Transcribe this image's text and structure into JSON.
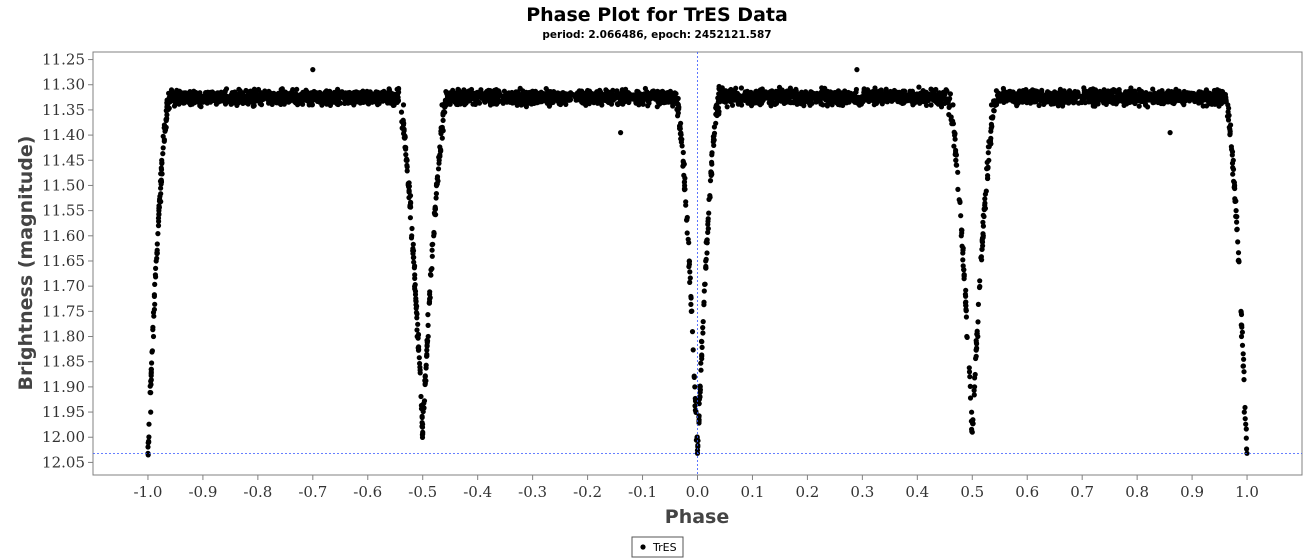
{
  "chart_data": {
    "type": "scatter",
    "title": "Phase Plot for TrES Data",
    "subtitle": "period: 2.066486, epoch: 2452121.587",
    "xlabel": "Phase",
    "ylabel": "Brightness (magnitude)",
    "xlim": [
      -1.1,
      1.1
    ],
    "ylim": [
      11.235,
      12.075
    ],
    "y_inverted": true,
    "x_ticks": [
      "-1.0",
      "-0.9",
      "-0.8",
      "-0.7",
      "-0.6",
      "-0.5",
      "-0.4",
      "-0.3",
      "-0.2",
      "-0.1",
      "0.0",
      "0.1",
      "0.2",
      "0.3",
      "0.4",
      "0.5",
      "0.6",
      "0.7",
      "0.8",
      "0.9",
      "1.0"
    ],
    "y_ticks": [
      "11.25",
      "11.30",
      "11.35",
      "11.40",
      "11.45",
      "11.50",
      "11.55",
      "11.60",
      "11.65",
      "11.70",
      "11.75",
      "11.80",
      "11.85",
      "11.90",
      "11.95",
      "12.00",
      "12.05"
    ],
    "crosshair": {
      "x": 0.0,
      "y": 12.032
    },
    "grid": false,
    "legend_position": "bottom-center",
    "series": [
      {
        "name": "TrES",
        "color": "#000000",
        "marker": "circle",
        "baseline": 11.325,
        "baseline_scatter": 0.012,
        "primary_eclipse_depth": 12.032,
        "primary_eclipse_halfwidth": 0.04,
        "secondary_eclipse_depth": 11.99,
        "secondary_eclipse_halfwidth": 0.045,
        "points": [
          {
            "x": -1.0,
            "y": 12.032
          },
          {
            "x": -0.995,
            "y": 11.95
          },
          {
            "x": -0.99,
            "y": 11.8
          },
          {
            "x": -0.985,
            "y": 11.65
          },
          {
            "x": -0.98,
            "y": 11.55
          },
          {
            "x": -0.975,
            "y": 11.45
          },
          {
            "x": -0.97,
            "y": 11.38
          },
          {
            "x": -0.965,
            "y": 11.34
          },
          {
            "x": -0.535,
            "y": 11.34
          },
          {
            "x": -0.53,
            "y": 11.45
          },
          {
            "x": -0.52,
            "y": 11.6
          },
          {
            "x": -0.51,
            "y": 11.8
          },
          {
            "x": -0.5,
            "y": 11.99
          },
          {
            "x": -0.49,
            "y": 11.8
          },
          {
            "x": -0.48,
            "y": 11.6
          },
          {
            "x": -0.47,
            "y": 11.45
          },
          {
            "x": -0.465,
            "y": 11.34
          },
          {
            "x": -0.7,
            "y": 11.27
          },
          {
            "x": -0.14,
            "y": 11.395
          },
          {
            "x": -0.035,
            "y": 11.34
          },
          {
            "x": -0.025,
            "y": 11.48
          },
          {
            "x": -0.015,
            "y": 11.65
          },
          {
            "x": -0.005,
            "y": 11.9
          },
          {
            "x": 0.0,
            "y": 12.032
          },
          {
            "x": 0.005,
            "y": 11.9
          },
          {
            "x": 0.015,
            "y": 11.65
          },
          {
            "x": 0.025,
            "y": 11.48
          },
          {
            "x": 0.035,
            "y": 11.34
          },
          {
            "x": 0.29,
            "y": 11.27
          },
          {
            "x": 0.465,
            "y": 11.34
          },
          {
            "x": 0.47,
            "y": 11.45
          },
          {
            "x": 0.48,
            "y": 11.6
          },
          {
            "x": 0.49,
            "y": 11.8
          },
          {
            "x": 0.5,
            "y": 11.99
          },
          {
            "x": 0.51,
            "y": 11.8
          },
          {
            "x": 0.52,
            "y": 11.6
          },
          {
            "x": 0.53,
            "y": 11.45
          },
          {
            "x": 0.535,
            "y": 11.34
          },
          {
            "x": 0.86,
            "y": 11.395
          },
          {
            "x": 0.965,
            "y": 11.34
          },
          {
            "x": 0.97,
            "y": 11.38
          },
          {
            "x": 0.975,
            "y": 11.45
          },
          {
            "x": 0.98,
            "y": 11.55
          },
          {
            "x": 0.985,
            "y": 11.65
          },
          {
            "x": 0.99,
            "y": 11.8
          },
          {
            "x": 0.995,
            "y": 11.95
          },
          {
            "x": 1.0,
            "y": 12.032
          }
        ]
      }
    ]
  }
}
